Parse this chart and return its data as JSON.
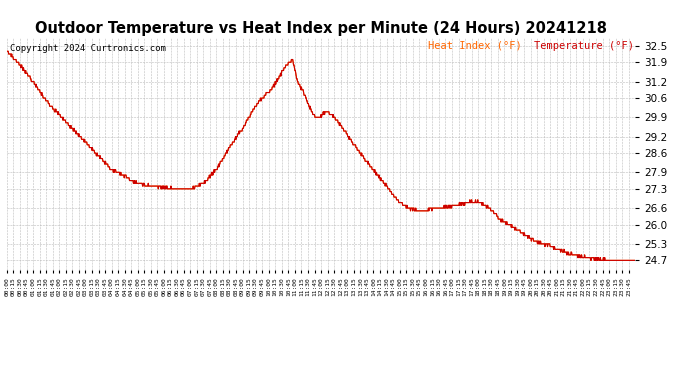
{
  "title": "Outdoor Temperature vs Heat Index per Minute (24 Hours) 20241218",
  "copyright": "Copyright 2024 Curtronics.com",
  "legend_heat_index": "Heat Index (°F)",
  "legend_temperature": "Temperature (°F)",
  "heat_index_color": "#ff6600",
  "temperature_color": "#cc0000",
  "line_color": "#cc0000",
  "background_color": "#ffffff",
  "grid_color": "#bbbbbb",
  "yticks": [
    24.7,
    25.3,
    26.0,
    26.6,
    27.3,
    27.9,
    28.6,
    29.2,
    29.9,
    30.6,
    31.2,
    31.9,
    32.5
  ],
  "ylim": [
    24.35,
    32.8
  ],
  "title_fontsize": 10.5,
  "copyright_fontsize": 6.5,
  "legend_fontsize": 7.5
}
